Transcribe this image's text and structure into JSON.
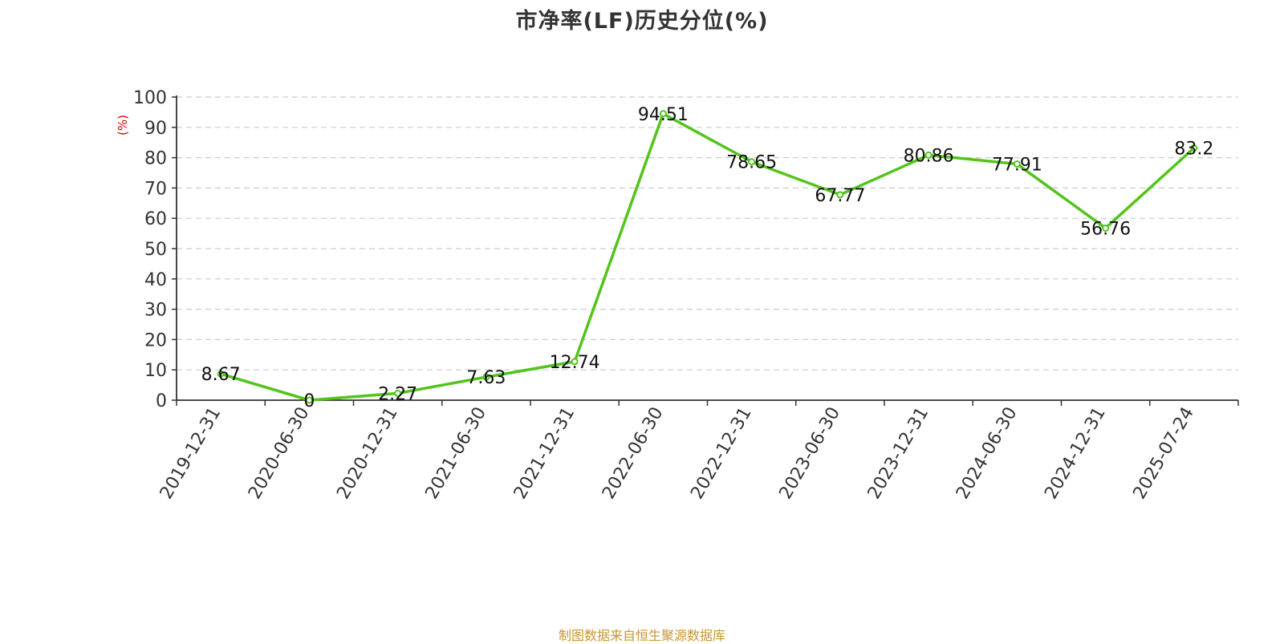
{
  "chart_data": {
    "type": "line",
    "title": "市净率(LF)历史分位(%)",
    "ylabel": "(%)",
    "xlabel": "",
    "ylim": [
      0,
      100
    ],
    "yticks": [
      0,
      10,
      20,
      30,
      40,
      50,
      60,
      70,
      80,
      90,
      100
    ],
    "grid": true,
    "categories": [
      "2019-12-31",
      "2020-06-30",
      "2020-12-31",
      "2021-06-30",
      "2021-12-31",
      "2022-06-30",
      "2022-12-31",
      "2023-06-30",
      "2023-12-31",
      "2024-06-30",
      "2024-12-31",
      "2025-07-24"
    ],
    "series": [
      {
        "values": [
          8.67,
          0,
          2.27,
          7.63,
          12.74,
          94.51,
          78.65,
          67.77,
          80.86,
          77.91,
          56.76,
          83.2
        ],
        "labels": [
          "8.67",
          "0",
          "2.27",
          "7.63",
          "12.74",
          "94.51",
          "78.65",
          "67.77",
          "80.86",
          "77.91",
          "56.76",
          "83.2"
        ],
        "color": "#52c41a"
      }
    ],
    "colors": {
      "line": "#52c41a",
      "axis": "#333333",
      "grid": "#cccccc",
      "ylabel": "#e00000",
      "source": "#c8962d"
    }
  },
  "source": "制图数据来自恒生聚源数据库"
}
